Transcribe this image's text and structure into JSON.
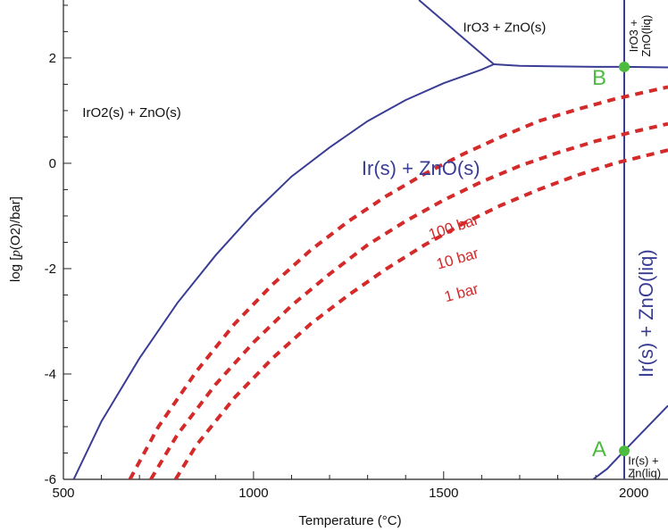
{
  "chart_data": {
    "type": "line",
    "title": "",
    "xlabel": "Temperature (°C)",
    "ylabel_parts": [
      "log [",
      "p",
      "(O2)/bar]"
    ],
    "xlim": [
      500,
      2090
    ],
    "ylim": [
      -6,
      3.1
    ],
    "x_ticks": [
      500,
      1000,
      1500,
      2000
    ],
    "y_ticks": [
      2,
      0,
      -2,
      -4,
      -6
    ],
    "colors": {
      "boundary": "#3a3d94",
      "pressure": "#d42a2a",
      "point": "#4cbb3f",
      "point_label": "#4cbb3f"
    },
    "boundaries": [
      {
        "name": "IrO2/Ir boundary",
        "points": [
          [
            527,
            -6
          ],
          [
            600,
            -4.9
          ],
          [
            700,
            -3.7
          ],
          [
            800,
            -2.65
          ],
          [
            900,
            -1.75
          ],
          [
            1000,
            -0.95
          ],
          [
            1100,
            -0.25
          ],
          [
            1200,
            0.3
          ],
          [
            1300,
            0.8
          ],
          [
            1400,
            1.2
          ],
          [
            1500,
            1.52
          ],
          [
            1600,
            1.78
          ],
          [
            1632,
            1.88
          ]
        ]
      },
      {
        "name": "IrO2/IrO3 boundary",
        "points": [
          [
            1435,
            3.1
          ],
          [
            1632,
            1.88
          ]
        ]
      },
      {
        "name": "IrO3/Ir boundary",
        "points": [
          [
            1632,
            1.88
          ],
          [
            1700,
            1.85
          ],
          [
            1800,
            1.84
          ],
          [
            1900,
            1.83
          ],
          [
            1975,
            1.83
          ],
          [
            2090,
            1.82
          ]
        ]
      },
      {
        "name": "ZnO(s)/ZnO(liq) boundary",
        "points": [
          [
            1975,
            3.1
          ],
          [
            1975,
            -6
          ]
        ]
      },
      {
        "name": "ZnO(liq)/Zn(liq) boundary",
        "points": [
          [
            1893,
            -6
          ],
          [
            1930,
            -5.8
          ],
          [
            1975,
            -5.46
          ],
          [
            2090,
            -4.6
          ]
        ]
      }
    ],
    "series": [
      {
        "name": "100 bar",
        "label": "100 bar",
        "values": [
          [
            675,
            -6
          ],
          [
            750,
            -5.0
          ],
          [
            850,
            -3.95
          ],
          [
            950,
            -3.05
          ],
          [
            1050,
            -2.3
          ],
          [
            1150,
            -1.65
          ],
          [
            1250,
            -1.1
          ],
          [
            1350,
            -0.62
          ],
          [
            1450,
            -0.2
          ],
          [
            1550,
            0.17
          ],
          [
            1650,
            0.5
          ],
          [
            1750,
            0.8
          ],
          [
            1850,
            1.02
          ],
          [
            1950,
            1.22
          ],
          [
            2090,
            1.45
          ]
        ],
        "label_at": [
          1530,
          -1.3
        ],
        "label_angle": -18
      },
      {
        "name": "10 bar",
        "label": "10 bar",
        "values": [
          [
            730,
            -6
          ],
          [
            800,
            -5.15
          ],
          [
            900,
            -4.2
          ],
          [
            1000,
            -3.4
          ],
          [
            1100,
            -2.7
          ],
          [
            1200,
            -2.1
          ],
          [
            1300,
            -1.55
          ],
          [
            1400,
            -1.1
          ],
          [
            1500,
            -0.7
          ],
          [
            1600,
            -0.35
          ],
          [
            1700,
            -0.05
          ],
          [
            1800,
            0.2
          ],
          [
            1900,
            0.42
          ],
          [
            2000,
            0.6
          ],
          [
            2090,
            0.75
          ]
        ],
        "label_at": [
          1540,
          -1.9
        ],
        "label_angle": -16
      },
      {
        "name": "1 bar",
        "label": "1 bar",
        "values": [
          [
            795,
            -6
          ],
          [
            850,
            -5.35
          ],
          [
            950,
            -4.45
          ],
          [
            1050,
            -3.7
          ],
          [
            1150,
            -3.05
          ],
          [
            1250,
            -2.5
          ],
          [
            1350,
            -2.0
          ],
          [
            1450,
            -1.55
          ],
          [
            1550,
            -1.15
          ],
          [
            1650,
            -0.8
          ],
          [
            1750,
            -0.5
          ],
          [
            1850,
            -0.23
          ],
          [
            1950,
            0.0
          ],
          [
            2090,
            0.25
          ]
        ],
        "label_at": [
          1550,
          -2.55
        ],
        "label_angle": -15
      }
    ],
    "regions": [
      {
        "text": "IrO2(s) + ZnO(s)",
        "at": [
          550,
          0.88
        ],
        "size": 15,
        "color": "#111111",
        "anchor": "start",
        "angle": 0
      },
      {
        "text": "IrO3 + ZnO(s)",
        "at": [
          1660,
          2.5
        ],
        "size": 15,
        "color": "#111111",
        "anchor": "middle",
        "angle": 0
      },
      {
        "text": "Ir(s) + ZnO(s)",
        "at": [
          1440,
          -0.22
        ],
        "size": 22,
        "color": "#3a3d94",
        "anchor": "middle",
        "angle": 0
      },
      {
        "text": "Ir(s) + ZnO(liq)",
        "at": [
          2050,
          -2.85
        ],
        "size": 22,
        "color": "#3a3d94",
        "anchor": "middle",
        "angle": -90
      }
    ],
    "stacked_labels": [
      {
        "lines": [
          "IrO3 +",
          "ZnO(liq)"
        ],
        "at": [
          2010,
          2.42
        ],
        "size": 13,
        "angle": -90
      },
      {
        "lines": [
          "Ir(s) +",
          "Zn(liq)"
        ],
        "at": [
          1985,
          -5.72
        ],
        "size": 13,
        "angle": 0
      }
    ],
    "points": [
      {
        "label": "A",
        "x": 1975,
        "y": -5.46,
        "label_offset": [
          -36,
          14
        ]
      },
      {
        "label": "B",
        "x": 1975,
        "y": 1.83,
        "label_offset": [
          -36,
          28
        ]
      }
    ]
  }
}
